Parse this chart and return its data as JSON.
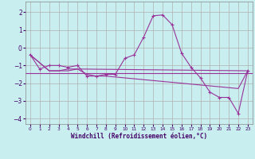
{
  "xlabel": "Windchill (Refroidissement éolien,°C)",
  "bg_color": "#c8eef0",
  "grid_color": "#b0b0b0",
  "line_color": "#993399",
  "xlim": [
    -0.5,
    23.5
  ],
  "ylim": [
    -4.3,
    2.6
  ],
  "xticks": [
    0,
    1,
    2,
    3,
    4,
    5,
    6,
    7,
    8,
    9,
    10,
    11,
    12,
    13,
    14,
    15,
    16,
    17,
    18,
    19,
    20,
    21,
    22,
    23
  ],
  "yticks": [
    -4,
    -3,
    -2,
    -1,
    0,
    1,
    2
  ],
  "line1_x": [
    0,
    1,
    2,
    3,
    4,
    5,
    6,
    7,
    8,
    9,
    10,
    11,
    12,
    13,
    14,
    15,
    16,
    17,
    18,
    19,
    20,
    21,
    22,
    23
  ],
  "line1_y": [
    -0.4,
    -1.2,
    -1.0,
    -1.0,
    -1.1,
    -1.0,
    -1.6,
    -1.6,
    -1.5,
    -1.5,
    -0.6,
    -0.4,
    0.6,
    1.8,
    1.85,
    1.3,
    -0.3,
    -1.1,
    -1.7,
    -2.5,
    -2.8,
    -2.8,
    -3.7,
    -1.3
  ],
  "line2_x": [
    0,
    2,
    3,
    4,
    5,
    6,
    7,
    8,
    9,
    10,
    11,
    12,
    13,
    14,
    15,
    16,
    17,
    18,
    19,
    20,
    21,
    22,
    23
  ],
  "line2_y": [
    -0.4,
    -1.3,
    -1.3,
    -1.3,
    -1.2,
    -1.5,
    -1.6,
    -1.6,
    -1.65,
    -1.7,
    -1.75,
    -1.8,
    -1.85,
    -1.9,
    -1.95,
    -2.0,
    -2.05,
    -2.1,
    -2.15,
    -2.2,
    -2.25,
    -2.3,
    -1.3
  ],
  "line3_x": [
    0,
    2,
    3,
    4,
    5,
    23
  ],
  "line3_y": [
    -0.4,
    -1.3,
    -1.3,
    -1.2,
    -1.2,
    -1.3
  ],
  "hline_y": -1.45
}
